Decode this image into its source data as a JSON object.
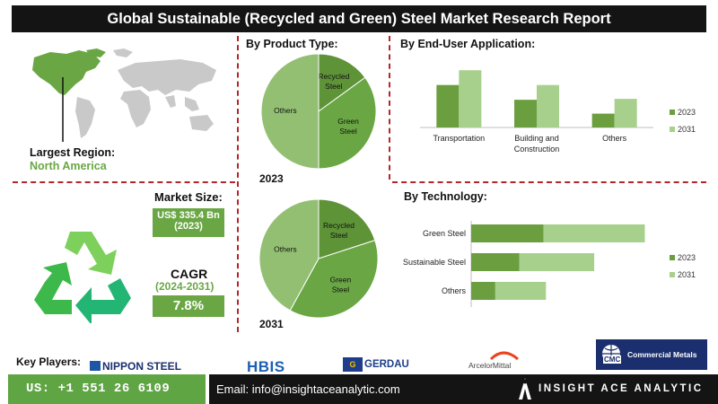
{
  "header": {
    "title": "Global Sustainable (Recycled and Green) Steel Market Research Report"
  },
  "region": {
    "label": "Largest Region:",
    "value": "North America"
  },
  "market_size": {
    "label": "Market Size:",
    "value": "US$ 335.4 Bn",
    "year": "(2023)"
  },
  "cagr": {
    "label": "CAGR",
    "period": "(2024-2031)",
    "value": "7.8%"
  },
  "sections": {
    "product_type": "By Product Type:",
    "end_user": "By  End-User Application:",
    "technology": "By Technology:"
  },
  "key_players": {
    "label": "Key Players:",
    "items": [
      "NIPPON STEEL",
      "HBIS",
      "GERDAU",
      "ArcelorMittal",
      "Commercial Metals"
    ],
    "cmc": "CMC"
  },
  "footer": {
    "phone": "US: +1 551 26 6109",
    "email": "Email: info@insightaceanalytic.com",
    "brand": "INSIGHT ACE ANALYTIC"
  },
  "colors": {
    "dark_green": "#6b9e3f",
    "mid_green": "#5e9338",
    "light_green": "#a8d08d",
    "accent_red": "#b3262b"
  },
  "chart_data": [
    {
      "id": "product_2023",
      "type": "pie",
      "caption": "2023",
      "slices": [
        {
          "label": "Recycled Steel",
          "value": 15,
          "color": "#5e9338"
        },
        {
          "label": "Green Steel",
          "value": 35,
          "color": "#6aa744"
        },
        {
          "label": "Others",
          "value": 50,
          "color": "#93bf72"
        }
      ]
    },
    {
      "id": "product_2031",
      "type": "pie",
      "caption": "2031",
      "slices": [
        {
          "label": "Recycled Steel",
          "value": 20,
          "color": "#5e9338"
        },
        {
          "label": "Green Steel",
          "value": 38,
          "color": "#6aa744"
        },
        {
          "label": "Others",
          "value": 42,
          "color": "#93bf72"
        }
      ]
    },
    {
      "id": "end_user",
      "type": "bar",
      "categories": [
        "Transportation",
        "Building and Construction",
        "Others"
      ],
      "series": [
        {
          "name": "2023",
          "values": [
            46,
            30,
            15
          ],
          "color": "#6b9e3f"
        },
        {
          "name": "2031",
          "values": [
            62,
            46,
            31
          ],
          "color": "#a8d08d"
        }
      ],
      "ylim": [
        0,
        70
      ],
      "legend": "right"
    },
    {
      "id": "technology",
      "type": "bar",
      "orientation": "horizontal",
      "stacked": true,
      "categories": [
        "Green Steel",
        "Sustainable Steel",
        "Others"
      ],
      "series": [
        {
          "name": "2023",
          "values": [
            30,
            20,
            10
          ],
          "color": "#6b9e3f"
        },
        {
          "name": "2031",
          "values": [
            42,
            31,
            21
          ],
          "color": "#a8d08d"
        }
      ],
      "xlim": [
        0,
        80
      ],
      "legend": "right"
    }
  ]
}
